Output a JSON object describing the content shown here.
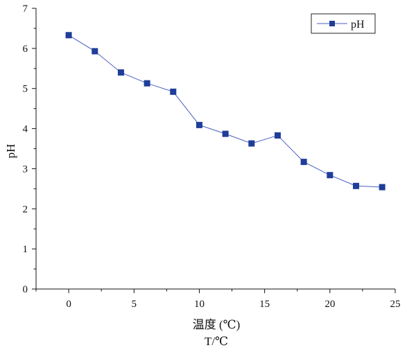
{
  "chart_data": {
    "type": "line",
    "x": [
      0,
      2,
      4,
      6,
      8,
      10,
      12,
      14,
      16,
      18,
      20,
      22,
      24
    ],
    "series": [
      {
        "name": "pH",
        "values": [
          6.33,
          5.93,
          5.4,
          5.13,
          4.92,
          4.09,
          3.87,
          3.63,
          3.83,
          3.17,
          2.84,
          2.57,
          2.54
        ]
      }
    ],
    "xlabel": "温度 (℃)",
    "xlabel2": "T/℃",
    "ylabel": "pH",
    "xlim": [
      -2.5,
      25
    ],
    "ylim": [
      0,
      7
    ],
    "xticks": [
      0,
      5,
      10,
      15,
      20,
      25
    ],
    "xticks_minor": [
      -2.5,
      2.5,
      7.5,
      12.5,
      17.5,
      22.5
    ],
    "yticks": [
      0,
      1,
      2,
      3,
      4,
      5,
      6,
      7
    ],
    "xtick_labels": [
      "0",
      "5",
      "10",
      "15",
      "20",
      "25"
    ],
    "ytick_labels": [
      "0",
      "1",
      "2",
      "3",
      "4",
      "5",
      "6",
      "7"
    ],
    "grid": false,
    "legend_position": "top-right",
    "line_color": "#4a5fc1",
    "marker_color": "#1f3d99"
  }
}
